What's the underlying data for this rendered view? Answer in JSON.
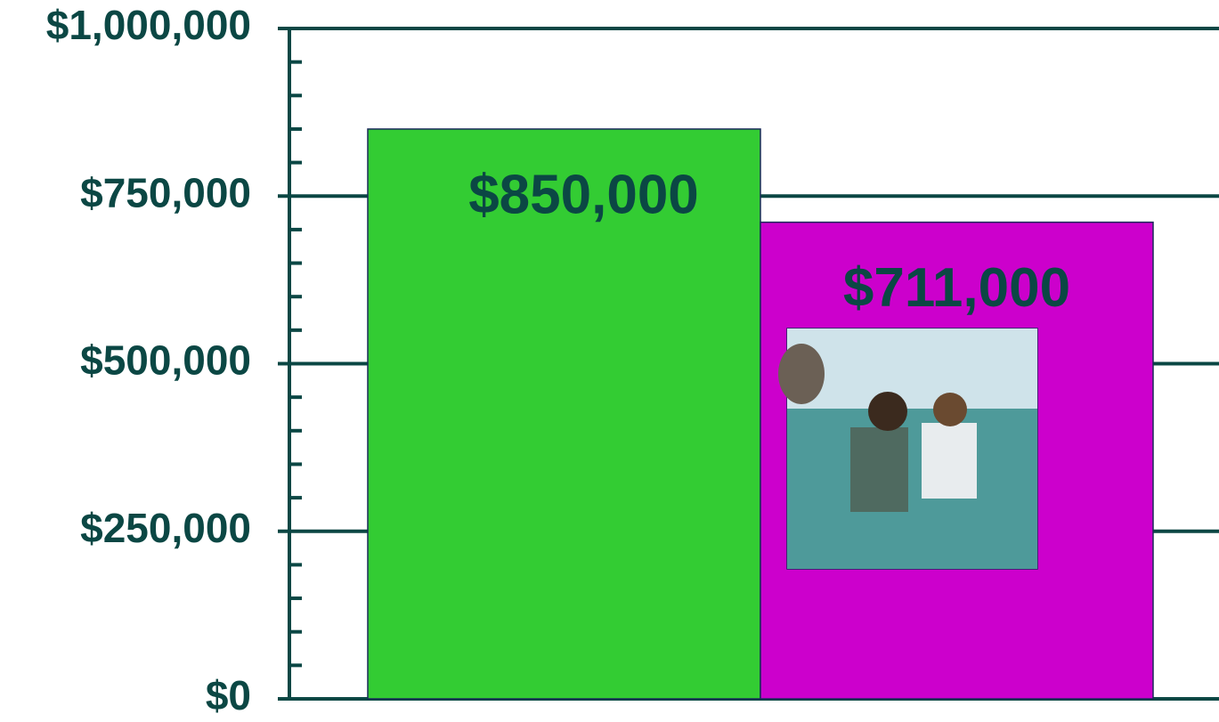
{
  "chart_data": {
    "type": "bar",
    "categories": [
      null,
      null
    ],
    "series": [
      {
        "values": [
          850000,
          null
        ],
        "color": "#33cc33",
        "value_labels": [
          "$850,000",
          null
        ]
      },
      {
        "values": [
          null,
          711000
        ],
        "color": "#cc00cc",
        "value_labels": [
          null,
          "$711,000"
        ]
      }
    ],
    "ylim": [
      0,
      1000000
    ],
    "yticks": [
      {
        "value": 0,
        "label": "$0"
      },
      {
        "value": 250000,
        "label": "$250,000"
      },
      {
        "value": 500000,
        "label": "$500,000"
      },
      {
        "value": 750000,
        "label": "$750,000"
      },
      {
        "value": 1000000,
        "label": "$1,000,000"
      }
    ],
    "minor_yticks": [
      50000,
      100000,
      150000,
      200000,
      300000,
      350000,
      400000,
      450000,
      550000,
      600000,
      650000,
      700000,
      800000,
      850000,
      900000,
      950000
    ],
    "grid": true
  }
}
